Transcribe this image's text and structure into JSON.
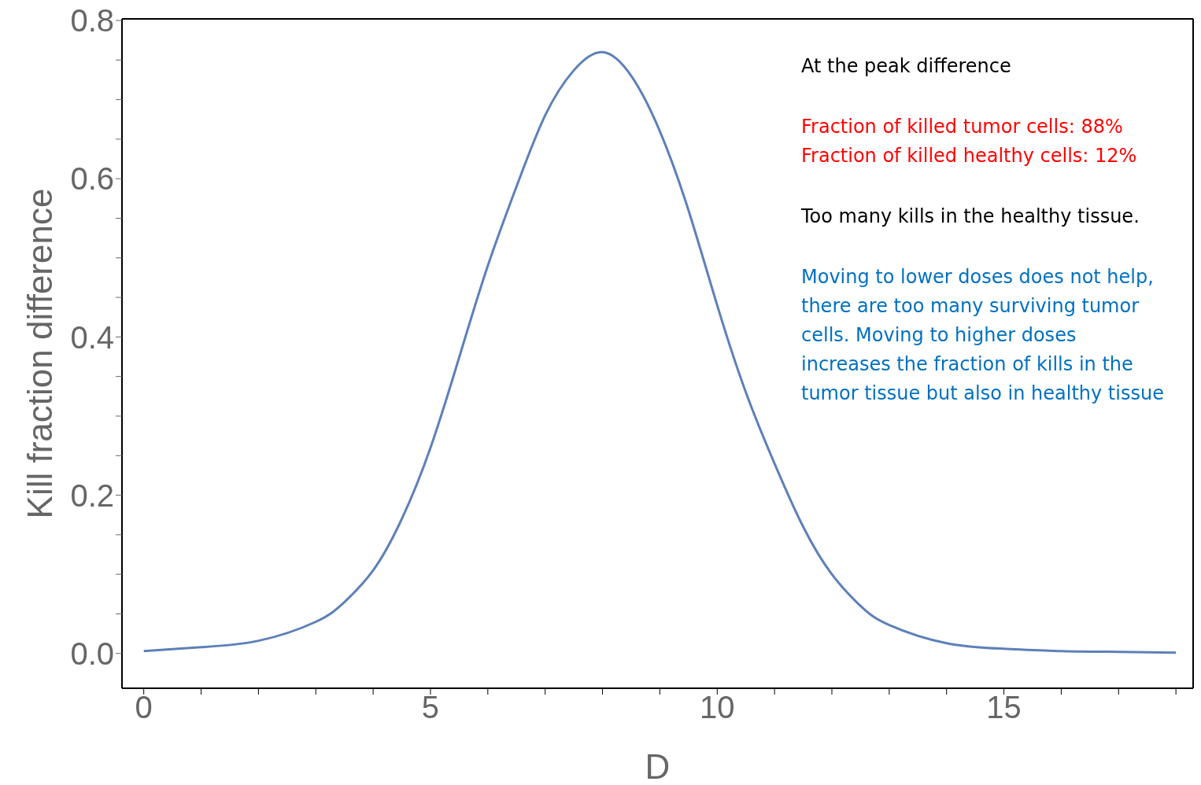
{
  "chart_data": {
    "type": "line",
    "xlabel": "D",
    "ylabel": "Kill fraction difference",
    "x": [
      0,
      1,
      2,
      3,
      3.5,
      4,
      4.5,
      5,
      5.5,
      6,
      6.5,
      7,
      7.5,
      8,
      8.5,
      9,
      9.5,
      10,
      10.5,
      11,
      11.5,
      12,
      12.5,
      13,
      14,
      15,
      16,
      17,
      18
    ],
    "series": [
      {
        "color": "#5d80b9",
        "values": [
          0.003,
          0.008,
          0.016,
          0.04,
          0.065,
          0.105,
          0.17,
          0.26,
          0.374,
          0.49,
          0.59,
          0.68,
          0.737,
          0.76,
          0.73,
          0.66,
          0.56,
          0.44,
          0.33,
          0.24,
          0.16,
          0.1,
          0.06,
          0.036,
          0.013,
          0.006,
          0.003,
          0.002,
          0.001
        ]
      }
    ],
    "xlim": [
      -0.38,
      18.3
    ],
    "ylim": [
      -0.044,
      0.802
    ],
    "xticks": [
      0,
      {
        "value": 1,
        "label": null
      },
      {
        "value": 2,
        "label": null
      },
      {
        "value": 3,
        "label": null
      },
      {
        "value": 4,
        "label": null
      },
      5,
      {
        "value": 6,
        "label": null
      },
      {
        "value": 7,
        "label": null
      },
      {
        "value": 8,
        "label": null
      },
      {
        "value": 9,
        "label": null
      },
      10,
      {
        "value": 11,
        "label": null
      },
      {
        "value": 12,
        "label": null
      },
      {
        "value": 13,
        "label": null
      },
      {
        "value": 14,
        "label": null
      },
      15,
      {
        "value": 16,
        "label": null
      },
      {
        "value": 17,
        "label": null
      },
      {
        "value": 18,
        "label": null
      }
    ],
    "yticks": [
      {
        "value": 0,
        "label": "0.0"
      },
      {
        "value": 0.05,
        "label": null
      },
      {
        "value": 0.1,
        "label": null
      },
      {
        "value": 0.15,
        "label": null
      },
      0.2,
      {
        "value": 0.25,
        "label": null
      },
      {
        "value": 0.3,
        "label": null
      },
      {
        "value": 0.35,
        "label": null
      },
      0.4,
      {
        "value": 0.45,
        "label": null
      },
      {
        "value": 0.5,
        "label": null
      },
      {
        "value": 0.55,
        "label": null
      },
      0.6,
      {
        "value": 0.65,
        "label": null
      },
      {
        "value": 0.7,
        "label": null
      },
      {
        "value": 0.75,
        "label": null
      },
      0.8
    ],
    "annotations": [
      "At the peak difference",
      "Fraction of killed tumor cells: 88%",
      "Fraction of killed healthy cells: 12%",
      "Too many kills in the healthy tissue.",
      "Moving to lower doses does not help, there are too many surviving tumor cells. Moving to higher doses increases the fraction of kills in the tumor tissue but also in healthy tissue"
    ],
    "grid": false,
    "legend": false,
    "marker": "none",
    "line_style": "solid"
  }
}
